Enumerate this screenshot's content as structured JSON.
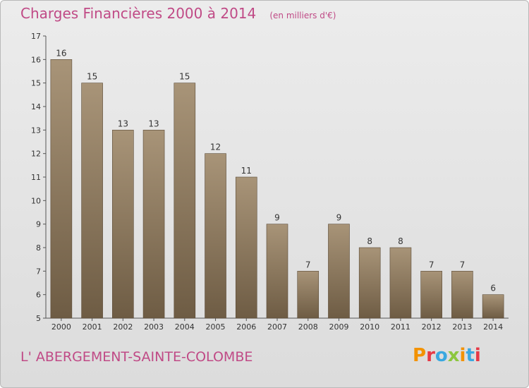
{
  "header": {
    "title": "Charges Financières 2000 à 2014",
    "unit": "(en milliers d'€)"
  },
  "footer": {
    "commune": "L' ABERGEMENT-SAINTE-COLOMBE",
    "logo": [
      "P",
      "r",
      "o",
      "x",
      "i",
      "t",
      "i"
    ]
  },
  "colors": {
    "title": "#c04a86",
    "bar_top": "#a89478",
    "bar_bottom": "#6e5c44",
    "logo": [
      "#f39200",
      "#e63946",
      "#3aa8e0",
      "#8cc63f",
      "#f39200",
      "#3aa8e0",
      "#e63946"
    ]
  },
  "chart_data": {
    "type": "bar",
    "title": "Charges Financières 2000 à 2014",
    "subtitle": "(en milliers d'€)",
    "categories": [
      "2000",
      "2001",
      "2002",
      "2003",
      "2004",
      "2005",
      "2006",
      "2007",
      "2008",
      "2009",
      "2010",
      "2011",
      "2012",
      "2013",
      "2014"
    ],
    "values": [
      16,
      15,
      13,
      13,
      15,
      12,
      11,
      9,
      7,
      9,
      8,
      8,
      7,
      7,
      6
    ],
    "ylim": [
      5,
      17
    ],
    "yticks": [
      5,
      6,
      7,
      8,
      9,
      10,
      11,
      12,
      13,
      14,
      15,
      16,
      17
    ],
    "grid": false,
    "data_labels": true
  }
}
